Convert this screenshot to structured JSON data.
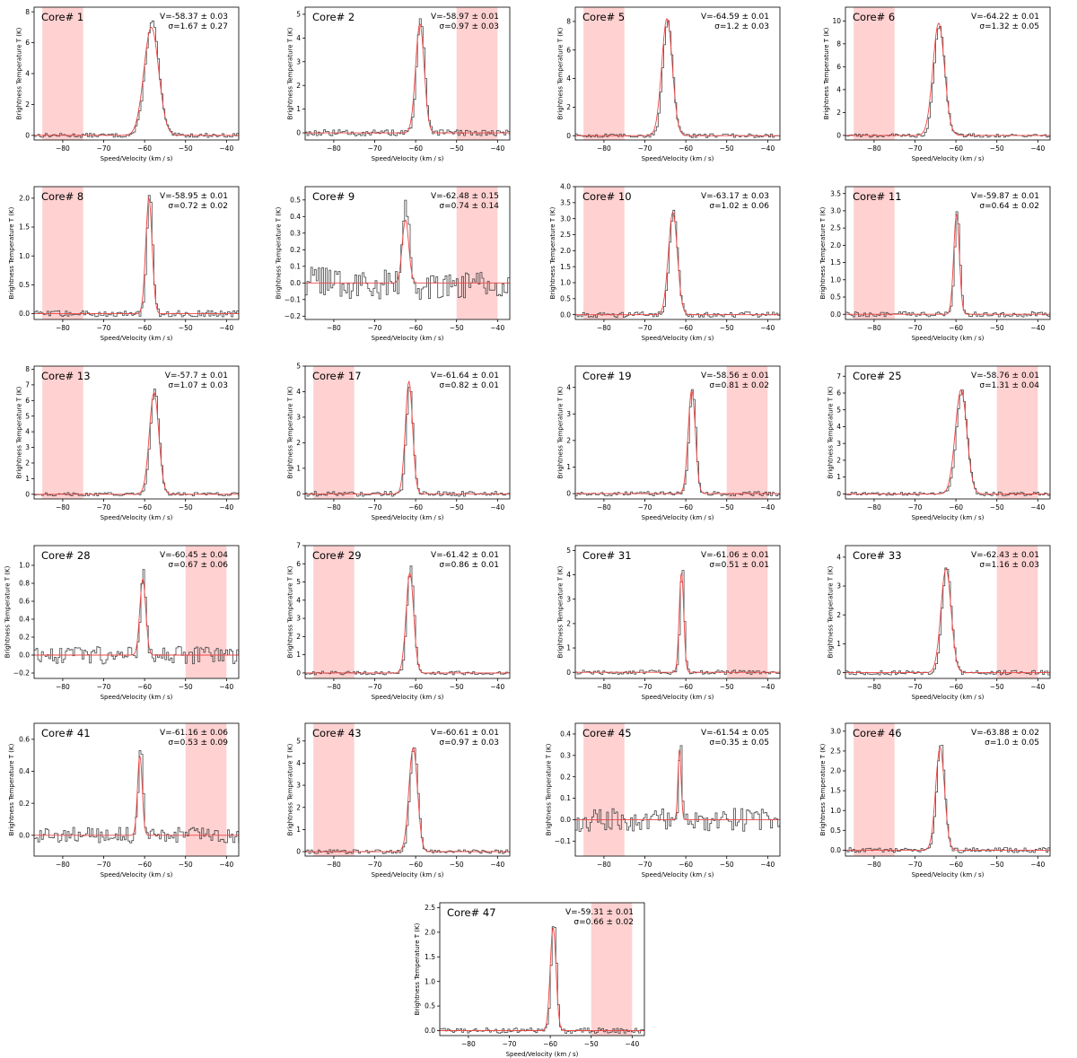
{
  "figure": {
    "colors": {
      "data_line": "#444444",
      "model_line": "#ee4444",
      "band_fill": "#ffb3b3",
      "axes": "#000000"
    },
    "common": {
      "xlabel": "Speed/Velocity (km / s)",
      "ylabel": "Brightness Temperature T (K)",
      "xlim": [
        -87,
        -37
      ],
      "xticks": [
        -80,
        -70,
        -60,
        -50,
        -40
      ],
      "xtick_labels": [
        "−80",
        "−70",
        "−60",
        "−50",
        "−40"
      ]
    }
  },
  "chart_data": [
    {
      "type": "line",
      "title": "Core# 1",
      "v_text": "V=-58.37 ± 0.03",
      "s_text": "σ=1.67 ± 0.27",
      "center": -58.37,
      "sigma": 1.67,
      "peak": 7.4,
      "model_peak": 7.0,
      "band": [
        -85,
        -75
      ],
      "ylim": [
        -0.3,
        8.3
      ],
      "yticks": [
        0,
        2,
        4,
        6,
        8
      ],
      "ytick_labels": [
        "0",
        "2",
        "4",
        "6",
        "8"
      ],
      "noise": 0.12,
      "xlabel": "Speed/Velocity (km / s)",
      "ylabel": "Brightness Temperature T (K)"
    },
    {
      "type": "line",
      "title": "Core# 2",
      "v_text": "V=-58.97 ± 0.01",
      "s_text": "σ=0.97 ± 0.03",
      "center": -58.97,
      "sigma": 0.97,
      "peak": 4.8,
      "model_peak": 4.6,
      "band": [
        -50,
        -40
      ],
      "ylim": [
        -0.3,
        5.3
      ],
      "yticks": [
        0,
        1,
        2,
        3,
        4,
        5
      ],
      "ytick_labels": [
        "0",
        "1",
        "2",
        "3",
        "4",
        "5"
      ],
      "noise": 0.12,
      "xlabel": "Speed/Velocity (km / s)",
      "ylabel": "Brightness Temperature T (K)"
    },
    {
      "type": "line",
      "title": "Core# 5",
      "v_text": "V=-64.59 ± 0.01",
      "s_text": "σ=1.2 ± 0.03",
      "center": -64.59,
      "sigma": 1.2,
      "peak": 8.1,
      "model_peak": 8.2,
      "band": [
        -85,
        -75
      ],
      "ylim": [
        -0.3,
        9.0
      ],
      "yticks": [
        0,
        2,
        4,
        6,
        8
      ],
      "ytick_labels": [
        "0",
        "2",
        "4",
        "6",
        "8"
      ],
      "noise": 0.12,
      "xlabel": "Speed/Velocity (km / s)",
      "ylabel": "Brightness Temperature T (K)"
    },
    {
      "type": "line",
      "title": "Core# 6",
      "v_text": "V=-64.22 ± 0.01",
      "s_text": "σ=1.32 ± 0.05",
      "center": -64.22,
      "sigma": 1.32,
      "peak": 9.6,
      "model_peak": 9.8,
      "band": [
        -85,
        -75
      ],
      "ylim": [
        -0.4,
        11.2
      ],
      "yticks": [
        0,
        2,
        4,
        6,
        8,
        10
      ],
      "ytick_labels": [
        "0",
        "2",
        "4",
        "6",
        "8",
        "10"
      ],
      "noise": 0.15,
      "xlabel": "Speed/Velocity (km / s)",
      "ylabel": "Brightness Temperature T (K)"
    },
    {
      "type": "line",
      "title": "Core# 8",
      "v_text": "V=-58.95 ± 0.01",
      "s_text": "σ=0.72 ± 0.02",
      "center": -58.95,
      "sigma": 0.72,
      "peak": 2.1,
      "model_peak": 2.0,
      "band": [
        -85,
        -75
      ],
      "ylim": [
        -0.1,
        2.2
      ],
      "yticks": [
        0,
        0.5,
        1,
        1.5,
        2
      ],
      "ytick_labels": [
        "0.0",
        "0.5",
        "1.0",
        "1.5",
        "2.0"
      ],
      "noise": 0.05,
      "xlabel": "Speed/Velocity (km / s)",
      "ylabel": "Brightness Temperature T (K)"
    },
    {
      "type": "line",
      "title": "Core# 9",
      "v_text": "V=-62.48 ± 0.15",
      "s_text": "σ=0.74 ± 0.14",
      "center": -62.48,
      "sigma": 0.74,
      "peak": 0.44,
      "model_peak": 0.38,
      "band": [
        -50,
        -40
      ],
      "ylim": [
        -0.22,
        0.58
      ],
      "yticks": [
        -0.2,
        -0.1,
        0,
        0.1,
        0.2,
        0.3,
        0.4,
        0.5
      ],
      "ytick_labels": [
        "−0.2",
        "−0.1",
        "0.0",
        "0.1",
        "0.2",
        "0.3",
        "0.4",
        "0.5"
      ],
      "noise": 0.09,
      "xlabel": "Speed/Velocity (km / s)",
      "ylabel": "Brightness Temperature T (K)"
    },
    {
      "type": "line",
      "title": "Core# 10",
      "v_text": "V=-63.17 ± 0.03",
      "s_text": "σ=1.02 ± 0.06",
      "center": -63.17,
      "sigma": 1.02,
      "peak": 3.25,
      "model_peak": 3.2,
      "band": [
        -85,
        -75
      ],
      "ylim": [
        -0.15,
        4.0
      ],
      "yticks": [
        0,
        0.5,
        1,
        1.5,
        2,
        2.5,
        3,
        3.5,
        4
      ],
      "ytick_labels": [
        "0.0",
        "0.5",
        "1.0",
        "1.5",
        "2.0",
        "2.5",
        "3.0",
        "3.5",
        "4.0"
      ],
      "noise": 0.08,
      "xlabel": "Speed/Velocity (km / s)",
      "ylabel": "Brightness Temperature T (K)"
    },
    {
      "type": "line",
      "title": "Core# 11",
      "v_text": "V=-59.87 ± 0.01",
      "s_text": "σ=0.64 ± 0.02",
      "center": -59.87,
      "sigma": 0.64,
      "peak": 3.05,
      "model_peak": 2.9,
      "band": [
        -85,
        -75
      ],
      "ylim": [
        -0.15,
        3.7
      ],
      "yticks": [
        0,
        0.5,
        1,
        1.5,
        2,
        2.5,
        3,
        3.5
      ],
      "ytick_labels": [
        "0.0",
        "0.5",
        "1.0",
        "1.5",
        "2.0",
        "2.5",
        "3.0",
        "3.5"
      ],
      "noise": 0.07,
      "xlabel": "Speed/Velocity (km / s)",
      "ylabel": "Brightness Temperature T (K)"
    },
    {
      "type": "line",
      "title": "Core# 13",
      "v_text": "V=-57.7 ± 0.01",
      "s_text": "σ=1.07 ± 0.03",
      "center": -57.7,
      "sigma": 1.07,
      "peak": 6.7,
      "model_peak": 6.5,
      "band": [
        -85,
        -75
      ],
      "ylim": [
        -0.3,
        8.2
      ],
      "yticks": [
        0,
        1,
        2,
        3,
        4,
        5,
        6,
        7,
        8
      ],
      "ytick_labels": [
        "0",
        "1",
        "2",
        "3",
        "4",
        "5",
        "6",
        "7",
        "8"
      ],
      "noise": 0.1,
      "xlabel": "Speed/Velocity (km / s)",
      "ylabel": "Brightness Temperature T (K)"
    },
    {
      "type": "line",
      "title": "Core# 17",
      "v_text": "V=-61.64 ± 0.01",
      "s_text": "σ=0.82 ± 0.01",
      "center": -61.64,
      "sigma": 0.82,
      "peak": 4.2,
      "model_peak": 4.4,
      "band": [
        -85,
        -75
      ],
      "ylim": [
        -0.2,
        5.0
      ],
      "yticks": [
        0,
        1,
        2,
        3,
        4,
        5
      ],
      "ytick_labels": [
        "0",
        "1",
        "2",
        "3",
        "4",
        "5"
      ],
      "noise": 0.09,
      "xlabel": "Speed/Velocity (km / s)",
      "ylabel": "Brightness Temperature T (K)"
    },
    {
      "type": "line",
      "title": "Core# 19",
      "v_text": "V=-58.56 ± 0.01",
      "s_text": "σ=0.81 ± 0.02",
      "center": -58.56,
      "sigma": 0.81,
      "peak": 4.0,
      "model_peak": 3.9,
      "band": [
        -50,
        -40
      ],
      "ylim": [
        -0.2,
        4.8
      ],
      "yticks": [
        0,
        1,
        2,
        3,
        4
      ],
      "ytick_labels": [
        "0",
        "1",
        "2",
        "3",
        "4"
      ],
      "noise": 0.08,
      "xlabel": "Speed/Velocity (km / s)",
      "ylabel": "Brightness Temperature T (K)"
    },
    {
      "type": "line",
      "title": "Core# 25",
      "v_text": "V=-58.76 ± 0.01",
      "s_text": "σ=1.31 ± 0.04",
      "center": -58.76,
      "sigma": 1.31,
      "peak": 6.1,
      "model_peak": 6.2,
      "band": [
        -50,
        -40
      ],
      "ylim": [
        -0.3,
        7.6
      ],
      "yticks": [
        0,
        1,
        2,
        3,
        4,
        5,
        6,
        7
      ],
      "ytick_labels": [
        "0",
        "1",
        "2",
        "3",
        "4",
        "5",
        "6",
        "7"
      ],
      "noise": 0.1,
      "xlabel": "Speed/Velocity (km / s)",
      "ylabel": "Brightness Temperature T (K)"
    },
    {
      "type": "line",
      "title": "Core# 28",
      "v_text": "V=-60.45 ± 0.04",
      "s_text": "σ=0.67 ± 0.06",
      "center": -60.45,
      "sigma": 0.67,
      "peak": 0.93,
      "model_peak": 0.85,
      "band": [
        -50,
        -40
      ],
      "ylim": [
        -0.26,
        1.22
      ],
      "yticks": [
        -0.2,
        0,
        0.2,
        0.4,
        0.6,
        0.8,
        1
      ],
      "ytick_labels": [
        "−0.2",
        "0.0",
        "0.2",
        "0.4",
        "0.6",
        "0.8",
        "1.0"
      ],
      "noise": 0.09,
      "xlabel": "Speed/Velocity (km / s)",
      "ylabel": "Brightness Temperature T (K)"
    },
    {
      "type": "line",
      "title": "Core# 29",
      "v_text": "V=-61.42 ± 0.01",
      "s_text": "σ=0.86 ± 0.01",
      "center": -61.42,
      "sigma": 0.86,
      "peak": 5.8,
      "model_peak": 5.5,
      "band": [
        -85,
        -75
      ],
      "ylim": [
        -0.3,
        7.0
      ],
      "yticks": [
        0,
        1,
        2,
        3,
        4,
        5,
        6,
        7
      ],
      "ytick_labels": [
        "0",
        "1",
        "2",
        "3",
        "4",
        "5",
        "6",
        "7"
      ],
      "noise": 0.09,
      "xlabel": "Speed/Velocity (km / s)",
      "ylabel": "Brightness Temperature T (K)"
    },
    {
      "type": "line",
      "title": "Core# 31",
      "v_text": "V=-61.06 ± 0.01",
      "s_text": "σ=0.51 ± 0.01",
      "center": -61.06,
      "sigma": 0.51,
      "peak": 4.35,
      "model_peak": 4.1,
      "band": [
        -50,
        -40
      ],
      "ylim": [
        -0.25,
        5.2
      ],
      "yticks": [
        0,
        1,
        2,
        3,
        4,
        5
      ],
      "ytick_labels": [
        "0",
        "1",
        "2",
        "3",
        "4",
        "5"
      ],
      "noise": 0.08,
      "xlabel": "Speed/Velocity (km / s)",
      "ylabel": "Brightness Temperature T (K)"
    },
    {
      "type": "line",
      "title": "Core# 33",
      "v_text": "V=-62.43 ± 0.01",
      "s_text": "σ=1.16 ± 0.03",
      "center": -62.43,
      "sigma": 1.16,
      "peak": 3.65,
      "model_peak": 3.6,
      "band": [
        -50,
        -40
      ],
      "ylim": [
        -0.2,
        4.4
      ],
      "yticks": [
        0,
        1,
        2,
        3,
        4
      ],
      "ytick_labels": [
        "0",
        "1",
        "2",
        "3",
        "4"
      ],
      "noise": 0.07,
      "xlabel": "Speed/Velocity (km / s)",
      "ylabel": "Brightness Temperature T (K)"
    },
    {
      "type": "line",
      "title": "Core# 41",
      "v_text": "V=-61.16 ± 0.06",
      "s_text": "σ=0.53 ± 0.09",
      "center": -61.16,
      "sigma": 0.53,
      "peak": 0.55,
      "model_peak": 0.5,
      "band": [
        -50,
        -40
      ],
      "ylim": [
        -0.13,
        0.7
      ],
      "yticks": [
        0,
        0.2,
        0.4,
        0.6
      ],
      "ytick_labels": [
        "0.0",
        "0.2",
        "0.4",
        "0.6"
      ],
      "noise": 0.045,
      "xlabel": "Speed/Velocity (km / s)",
      "ylabel": "Brightness Temperature T (K)"
    },
    {
      "type": "line",
      "title": "Core# 43",
      "v_text": "V=-60.61 ± 0.01",
      "s_text": "σ=0.97 ± 0.03",
      "center": -60.61,
      "sigma": 0.97,
      "peak": 4.8,
      "model_peak": 4.7,
      "band": [
        -85,
        -75
      ],
      "ylim": [
        -0.2,
        5.8
      ],
      "yticks": [
        0,
        1,
        2,
        3,
        4,
        5
      ],
      "ytick_labels": [
        "0",
        "1",
        "2",
        "3",
        "4",
        "5"
      ],
      "noise": 0.08,
      "xlabel": "Speed/Velocity (km / s)",
      "ylabel": "Brightness Temperature T (K)"
    },
    {
      "type": "line",
      "title": "Core# 45",
      "v_text": "V=-61.54 ± 0.05",
      "s_text": "σ=0.35 ± 0.05",
      "center": -61.54,
      "sigma": 0.35,
      "peak": 0.37,
      "model_peak": 0.33,
      "band": [
        -85,
        -75
      ],
      "ylim": [
        -0.17,
        0.45
      ],
      "yticks": [
        -0.1,
        0,
        0.1,
        0.2,
        0.3,
        0.4
      ],
      "ytick_labels": [
        "−0.1",
        "0.0",
        "0.1",
        "0.2",
        "0.3",
        "0.4"
      ],
      "noise": 0.05,
      "xlabel": "Speed/Velocity (km / s)",
      "ylabel": "Brightness Temperature T (K)"
    },
    {
      "type": "line",
      "title": "Core# 46",
      "v_text": "V=-63.88 ± 0.02",
      "s_text": "σ=1.0 ± 0.05",
      "center": -63.88,
      "sigma": 1.0,
      "peak": 2.7,
      "model_peak": 2.6,
      "band": [
        -85,
        -75
      ],
      "ylim": [
        -0.15,
        3.2
      ],
      "yticks": [
        0,
        0.5,
        1,
        1.5,
        2,
        2.5,
        3
      ],
      "ytick_labels": [
        "0.0",
        "0.5",
        "1.0",
        "1.5",
        "2.0",
        "2.5",
        "3.0"
      ],
      "noise": 0.06,
      "xlabel": "Speed/Velocity (km / s)",
      "ylabel": "Brightness Temperature T (K)"
    },
    {
      "type": "line",
      "title": "Core# 47",
      "v_text": "V=-59.31 ± 0.01",
      "s_text": "σ=0.66 ± 0.02",
      "center": -59.31,
      "sigma": 0.66,
      "peak": 2.2,
      "model_peak": 2.1,
      "band": [
        -50,
        -40
      ],
      "ylim": [
        -0.1,
        2.6
      ],
      "yticks": [
        0,
        0.5,
        1,
        1.5,
        2,
        2.5
      ],
      "ytick_labels": [
        "0.0",
        "0.5",
        "1.0",
        "1.5",
        "2.0",
        "2.5"
      ],
      "noise": 0.05,
      "xlabel": "Speed/Velocity (km / s)",
      "ylabel": "Brightness Temperature T (K)"
    }
  ]
}
